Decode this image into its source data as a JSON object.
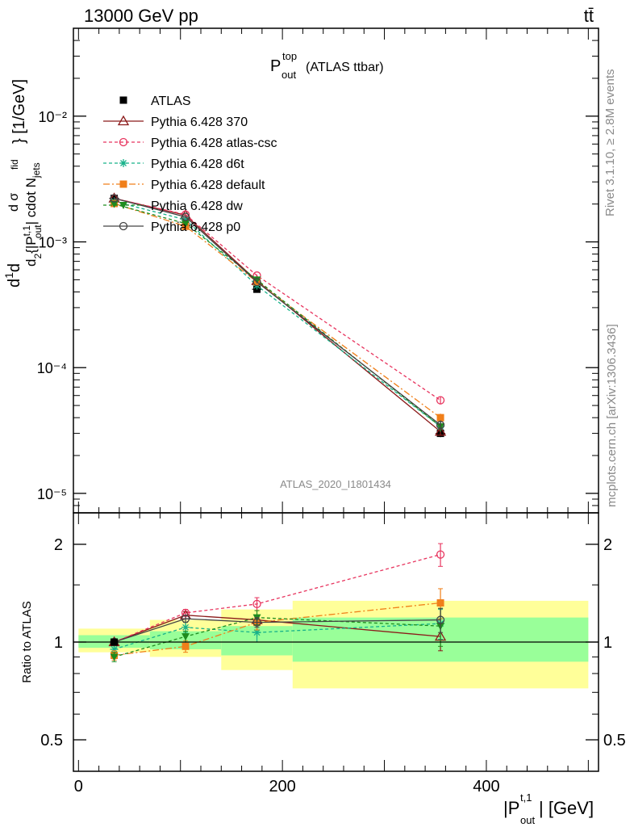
{
  "header": {
    "left": "13000 GeV pp",
    "right": "tt̄"
  },
  "plot_title": {
    "main": "P",
    "sup": "top",
    "sub": "out",
    "suffix": "(ATLAS ttbar)"
  },
  "side_text": {
    "rivet": "Rivet 3.1.10, ≥ 2.8M events",
    "mcplots": "mcplots.cern.ch [arXiv:1306.3436]"
  },
  "watermark": "ATLAS_2020_I1801434",
  "chart_data": [
    {
      "type": "line",
      "panel": "main",
      "y_scale": "log",
      "ylim": [
        7e-06,
        0.05
      ],
      "xlim": [
        -5,
        510
      ],
      "ylabel": "d²{|P_out^t,1| cdot N_jets} / dσ^fid dσ / σ^fid [1/GeV]",
      "ytick_labels": [
        "10⁻⁵",
        "10⁻⁴",
        "10⁻³",
        "10⁻²"
      ],
      "ytick_values": [
        1e-05,
        0.0001,
        0.001,
        0.01
      ],
      "x": [
        35,
        105,
        175,
        355
      ],
      "bin_edges": [
        0,
        70,
        140,
        210,
        500
      ],
      "series": [
        {
          "name": "ATLAS",
          "color": "#000000",
          "marker": "square",
          "dash": "none",
          "line": false,
          "values": [
            0.00222,
            0.00135,
            0.00042,
            3e-05
          ],
          "errors": [
            4e-05,
            3e-05,
            1e-05,
            2e-06
          ]
        },
        {
          "name": "Pythia 6.428 370",
          "color": "#8b1a1a",
          "marker": "triangle-open",
          "dash": "solid",
          "line": true,
          "values": [
            0.00222,
            0.00163,
            0.00049,
            3.1e-05
          ],
          "errors": [
            2e-05,
            2e-05,
            1e-05,
            2e-06
          ]
        },
        {
          "name": "Pythia 6.428 atlas-csc",
          "color": "#e8355f",
          "marker": "circle-open",
          "dash": "4,3",
          "line": true,
          "values": [
            0.00222,
            0.00165,
            0.00054,
            5.5e-05
          ],
          "errors": [
            2e-05,
            2e-05,
            1e-05,
            4e-06
          ]
        },
        {
          "name": "Pythia 6.428 d6t",
          "color": "#17b28a",
          "marker": "asterisk",
          "dash": "4,3",
          "line": true,
          "values": [
            0.0021,
            0.0015,
            0.00045,
            3.4e-05
          ],
          "errors": [
            2e-05,
            2e-05,
            1e-05,
            3e-06
          ]
        },
        {
          "name": "Pythia 6.428 default",
          "color": "#f07f1a",
          "marker": "square",
          "dash": "8,3,2,3",
          "line": true,
          "values": [
            0.00202,
            0.00133,
            0.00048,
            4e-05
          ],
          "errors": [
            2e-05,
            2e-05,
            1e-05,
            3e-06
          ]
        },
        {
          "name": "Pythia 6.428 dw",
          "color": "#1e8c1e",
          "marker": "triangle-down",
          "dash": "4,3",
          "line": true,
          "values": [
            0.002,
            0.0014,
            0.0005,
            3.4e-05
          ],
          "errors": [
            2e-05,
            2e-05,
            1e-05,
            3e-06
          ]
        },
        {
          "name": "Pythia 6.428 p0",
          "color": "#444444",
          "marker": "circle-open",
          "dash": "solid",
          "line": true,
          "values": [
            0.00222,
            0.00158,
            0.00048,
            3.5e-05
          ],
          "errors": [
            2e-05,
            2e-05,
            1e-05,
            3e-06
          ]
        }
      ]
    },
    {
      "type": "line",
      "panel": "ratio",
      "y_scale": "log",
      "ylim": [
        0.4,
        2.5
      ],
      "xlim": [
        -5,
        510
      ],
      "ylabel": "Ratio to ATLAS",
      "xlabel": "|P_out^t,1| [GeV]",
      "xtick_labels": [
        "0",
        "200",
        "400"
      ],
      "xtick_values": [
        0,
        200,
        400
      ],
      "ytick_labels": [
        "0.5",
        "1",
        "2"
      ],
      "ytick_values": [
        0.5,
        1,
        2
      ],
      "bands": {
        "bin_edges": [
          0,
          70,
          140,
          210,
          500
        ],
        "green_low": [
          0.96,
          0.95,
          0.91,
          0.87
        ],
        "green_high": [
          1.05,
          1.08,
          1.12,
          1.19
        ],
        "yellow_low": [
          0.93,
          0.9,
          0.82,
          0.72
        ],
        "yellow_high": [
          1.1,
          1.17,
          1.26,
          1.34
        ],
        "green_color": "#99ff99",
        "yellow_color": "#ffff99"
      },
      "x": [
        35,
        105,
        175,
        355
      ],
      "series": [
        {
          "name": "Pythia 6.428 370",
          "values": [
            1.0,
            1.21,
            1.17,
            1.04
          ],
          "errors": [
            0.02,
            0.03,
            0.04,
            0.1
          ]
        },
        {
          "name": "Pythia 6.428 atlas-csc",
          "values": [
            1.0,
            1.23,
            1.31,
            1.86
          ],
          "errors": [
            0.02,
            0.03,
            0.06,
            0.15
          ]
        },
        {
          "name": "Pythia 6.428 d6t",
          "values": [
            0.95,
            1.11,
            1.07,
            1.14
          ],
          "errors": [
            0.03,
            0.04,
            0.07,
            0.12
          ]
        },
        {
          "name": "Pythia 6.428 default",
          "values": [
            0.91,
            0.97,
            1.15,
            1.32
          ],
          "errors": [
            0.03,
            0.04,
            0.06,
            0.14
          ]
        },
        {
          "name": "Pythia 6.428 dw",
          "values": [
            0.9,
            1.04,
            1.19,
            1.12
          ],
          "errors": [
            0.03,
            0.04,
            0.06,
            0.15
          ]
        },
        {
          "name": "Pythia 6.428 p0",
          "values": [
            1.0,
            1.18,
            1.15,
            1.17
          ],
          "errors": [
            0.02,
            0.03,
            0.04,
            0.1
          ]
        }
      ]
    }
  ]
}
